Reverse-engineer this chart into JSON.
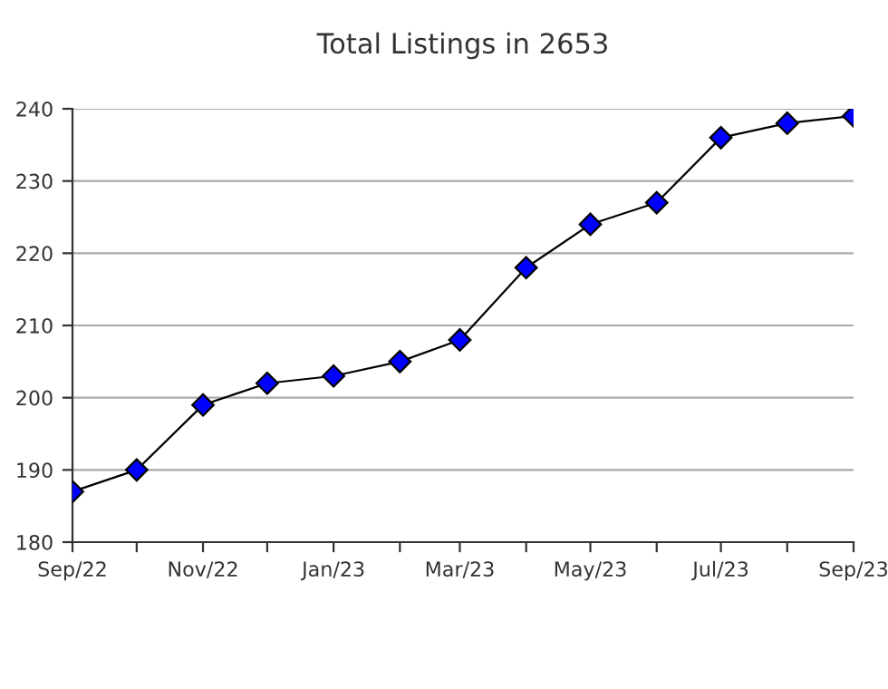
{
  "chart_data": {
    "type": "line",
    "title": "Total Listings in 2653",
    "x": [
      "2022-09",
      "2022-10",
      "2022-11",
      "2022-12",
      "2023-01",
      "2023-02",
      "2023-03",
      "2023-04",
      "2023-05",
      "2023-06",
      "2023-07",
      "2023-08",
      "2023-09"
    ],
    "series": [
      {
        "color": "#0000ff",
        "values": [
          187,
          190,
          199,
          202,
          203,
          205,
          208,
          218,
          224,
          227,
          236,
          238,
          239
        ]
      }
    ],
    "xlim": [
      "2022-09",
      "2023-09"
    ],
    "xticks": [
      {
        "value": "2022-09",
        "label": "Sep/22"
      },
      {
        "value": "2022-10",
        "label": null
      },
      {
        "value": "2022-11",
        "label": "Nov/22"
      },
      {
        "value": "2022-12",
        "label": null
      },
      {
        "value": "2023-01",
        "label": "Jan/23"
      },
      {
        "value": "2023-02",
        "label": null
      },
      {
        "value": "2023-03",
        "label": "Mar/23"
      },
      {
        "value": "2023-04",
        "label": null
      },
      {
        "value": "2023-05",
        "label": "May/23"
      },
      {
        "value": "2023-06",
        "label": null
      },
      {
        "value": "2023-07",
        "label": "Jul/23"
      },
      {
        "value": "2023-08",
        "label": null
      },
      {
        "value": "2023-09",
        "label": "Sep/23"
      }
    ],
    "ylim": [
      180,
      240
    ],
    "yticks": [
      180,
      190,
      200,
      210,
      220,
      230,
      240
    ],
    "grid": "y",
    "marker": "diamond",
    "line_style": "solid",
    "legend": false
  }
}
